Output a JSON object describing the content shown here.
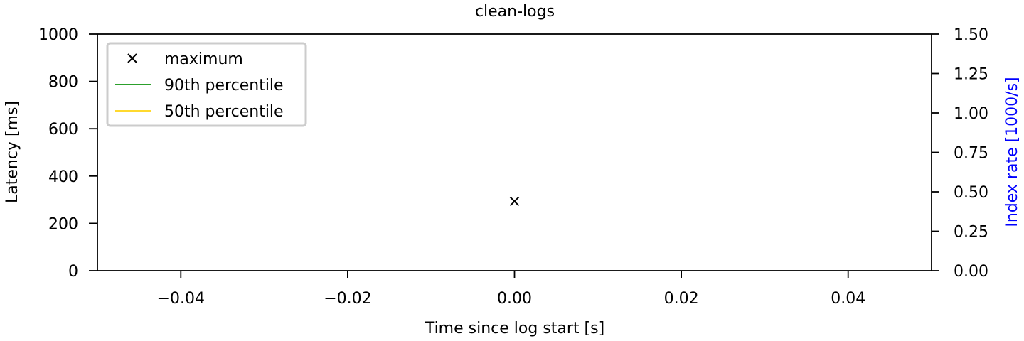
{
  "chart_data": {
    "type": "scatter",
    "title": "clean-logs",
    "xlabel": "Time since log start [s]",
    "ylabel": "Latency [ms]",
    "y2label": "Index rate [1000/s]",
    "xlim": [
      -0.05,
      0.05
    ],
    "ylim": [
      0,
      1000
    ],
    "y2lim": [
      0,
      1.5
    ],
    "x_ticks": [
      -0.04,
      -0.02,
      0.0,
      0.02,
      0.04
    ],
    "x_tick_labels": [
      "−0.04",
      "−0.02",
      "0.00",
      "0.02",
      "0.04"
    ],
    "y_ticks": [
      0,
      200,
      400,
      600,
      800,
      1000
    ],
    "y_tick_labels": [
      "0",
      "200",
      "400",
      "600",
      "800",
      "1000"
    ],
    "y2_ticks": [
      0,
      0.25,
      0.5,
      0.75,
      1.0,
      1.25,
      1.5
    ],
    "y2_tick_labels": [
      "0.00",
      "0.25",
      "0.50",
      "0.75",
      "1.00",
      "1.25",
      "1.50"
    ],
    "grid": false,
    "legend_position": "top-left",
    "y2_color": "#0000ff",
    "series": [
      {
        "name": "maximum",
        "marker": "x",
        "color": "#000000",
        "points": [
          [
            0.0,
            293
          ]
        ]
      },
      {
        "name": "90th percentile",
        "marker": "line",
        "color": "#2ca02c",
        "points": []
      },
      {
        "name": "50th percentile",
        "marker": "line",
        "color": "#ffd92f",
        "points": []
      }
    ]
  }
}
